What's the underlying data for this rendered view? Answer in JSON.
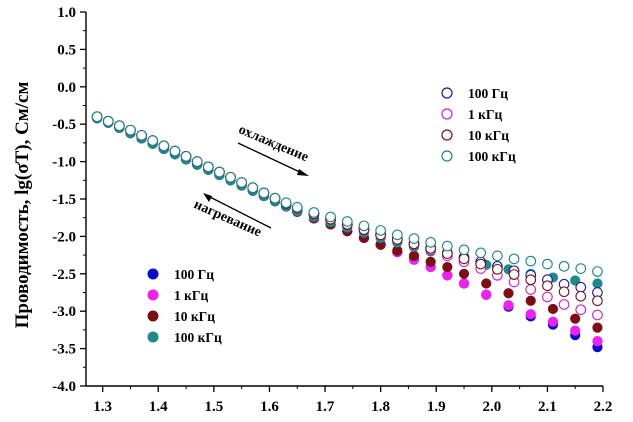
{
  "chart_data": {
    "type": "scatter",
    "ylabel": "Проводимость, lg(σT), См/см",
    "xlabel": "",
    "xlim": [
      1.27,
      2.2
    ],
    "ylim": [
      -4.0,
      1.0
    ],
    "x_ticks": [
      "1.3",
      "1.4",
      "1.5",
      "1.6",
      "1.7",
      "1.8",
      "1.9",
      "2.0",
      "2.1",
      "2.2"
    ],
    "y_ticks": [
      "1.0",
      "0.5",
      "0.0",
      "-0.5",
      "-1.0",
      "-1.5",
      "-2.0",
      "-2.5",
      "-3.0",
      "-3.5",
      "-4.0"
    ],
    "grid": false,
    "annotations": {
      "cooling": "охлаждение",
      "heating": "нагревание"
    },
    "legend_cooling": {
      "placement": "top-right",
      "entries": [
        {
          "label": "100 Гц",
          "color": "#1a1aa6"
        },
        {
          "label": "1 кГц",
          "color": "#d020d0"
        },
        {
          "label": "10 кГц",
          "color": "#7a1020"
        },
        {
          "label": "100 кГц",
          "color": "#1a8585"
        }
      ]
    },
    "legend_heating": {
      "placement": "bottom-left",
      "entries": [
        {
          "label": "100 Гц",
          "color": "#0a0ad0"
        },
        {
          "label": "1 кГц",
          "color": "#f020f0"
        },
        {
          "label": "10 кГц",
          "color": "#7d0f14"
        },
        {
          "label": "100 кГц",
          "color": "#1f8a8a"
        }
      ]
    },
    "series": [
      {
        "mode": "cooling",
        "color": "#1a1aa6",
        "x": [
          1.29,
          1.31,
          1.33,
          1.35,
          1.37,
          1.39,
          1.41,
          1.43,
          1.45,
          1.47,
          1.49,
          1.51,
          1.53,
          1.55,
          1.57,
          1.59,
          1.61,
          1.63,
          1.65,
          1.68,
          1.71,
          1.74,
          1.77,
          1.8,
          1.83,
          1.86,
          1.89,
          1.92,
          1.95,
          1.98,
          2.01,
          2.04,
          2.07,
          2.1,
          2.13,
          2.16,
          2.19
        ],
        "y": [
          -0.4,
          -0.46,
          -0.52,
          -0.58,
          -0.65,
          -0.72,
          -0.79,
          -0.86,
          -0.93,
          -1.0,
          -1.07,
          -1.14,
          -1.21,
          -1.28,
          -1.35,
          -1.42,
          -1.49,
          -1.56,
          -1.62,
          -1.7,
          -1.77,
          -1.84,
          -1.9,
          -1.97,
          -2.03,
          -2.09,
          -2.15,
          -2.22,
          -2.28,
          -2.34,
          -2.4,
          -2.46,
          -2.52,
          -2.58,
          -2.64,
          -2.68,
          -2.75
        ]
      },
      {
        "mode": "cooling",
        "color": "#d020d0",
        "x": [
          1.29,
          1.31,
          1.33,
          1.35,
          1.37,
          1.39,
          1.41,
          1.43,
          1.45,
          1.47,
          1.49,
          1.51,
          1.53,
          1.55,
          1.57,
          1.59,
          1.61,
          1.63,
          1.65,
          1.68,
          1.71,
          1.74,
          1.77,
          1.8,
          1.83,
          1.86,
          1.89,
          1.92,
          1.95,
          1.98,
          2.01,
          2.04,
          2.07,
          2.1,
          2.13,
          2.16,
          2.19
        ],
        "y": [
          -0.4,
          -0.46,
          -0.52,
          -0.58,
          -0.65,
          -0.72,
          -0.79,
          -0.86,
          -0.93,
          -1.0,
          -1.07,
          -1.14,
          -1.21,
          -1.28,
          -1.35,
          -1.42,
          -1.49,
          -1.56,
          -1.62,
          -1.7,
          -1.77,
          -1.84,
          -1.91,
          -1.98,
          -2.04,
          -2.11,
          -2.18,
          -2.26,
          -2.34,
          -2.43,
          -2.52,
          -2.61,
          -2.71,
          -2.81,
          -2.91,
          -2.98,
          -3.05
        ]
      },
      {
        "mode": "cooling",
        "color": "#7a1020",
        "x": [
          1.29,
          1.31,
          1.33,
          1.35,
          1.37,
          1.39,
          1.41,
          1.43,
          1.45,
          1.47,
          1.49,
          1.51,
          1.53,
          1.55,
          1.57,
          1.59,
          1.61,
          1.63,
          1.65,
          1.68,
          1.71,
          1.74,
          1.77,
          1.8,
          1.83,
          1.86,
          1.89,
          1.92,
          1.95,
          1.98,
          2.01,
          2.04,
          2.07,
          2.1,
          2.13,
          2.16,
          2.19
        ],
        "y": [
          -0.4,
          -0.46,
          -0.52,
          -0.58,
          -0.65,
          -0.72,
          -0.79,
          -0.86,
          -0.93,
          -1.0,
          -1.07,
          -1.14,
          -1.21,
          -1.28,
          -1.35,
          -1.42,
          -1.49,
          -1.56,
          -1.62,
          -1.7,
          -1.77,
          -1.84,
          -1.91,
          -1.98,
          -2.04,
          -2.1,
          -2.16,
          -2.23,
          -2.3,
          -2.37,
          -2.44,
          -2.51,
          -2.58,
          -2.66,
          -2.74,
          -2.8,
          -2.86
        ]
      },
      {
        "mode": "cooling",
        "color": "#1a8585",
        "x": [
          1.29,
          1.31,
          1.33,
          1.35,
          1.37,
          1.39,
          1.41,
          1.43,
          1.45,
          1.47,
          1.49,
          1.51,
          1.53,
          1.55,
          1.57,
          1.59,
          1.61,
          1.63,
          1.65,
          1.68,
          1.71,
          1.74,
          1.77,
          1.8,
          1.83,
          1.86,
          1.89,
          1.92,
          1.95,
          1.98,
          2.01,
          2.04,
          2.07,
          2.1,
          2.13,
          2.16,
          2.19
        ],
        "y": [
          -0.4,
          -0.46,
          -0.52,
          -0.58,
          -0.65,
          -0.72,
          -0.79,
          -0.86,
          -0.93,
          -1.0,
          -1.07,
          -1.14,
          -1.21,
          -1.28,
          -1.35,
          -1.42,
          -1.49,
          -1.55,
          -1.61,
          -1.68,
          -1.74,
          -1.8,
          -1.86,
          -1.92,
          -1.98,
          -2.03,
          -2.08,
          -2.13,
          -2.18,
          -2.22,
          -2.26,
          -2.3,
          -2.33,
          -2.37,
          -2.4,
          -2.43,
          -2.47
        ]
      },
      {
        "mode": "heating",
        "color": "#0a0ad0",
        "x": [
          1.29,
          1.31,
          1.33,
          1.35,
          1.37,
          1.39,
          1.41,
          1.43,
          1.45,
          1.47,
          1.49,
          1.51,
          1.53,
          1.55,
          1.57,
          1.59,
          1.61,
          1.63,
          1.65,
          1.68,
          1.71,
          1.74,
          1.77,
          1.8,
          1.83,
          1.86,
          1.89,
          1.92,
          1.95,
          1.99,
          2.03,
          2.07,
          2.11,
          2.15,
          2.19
        ],
        "y": [
          -0.42,
          -0.48,
          -0.55,
          -0.62,
          -0.69,
          -0.76,
          -0.83,
          -0.9,
          -0.97,
          -1.04,
          -1.11,
          -1.18,
          -1.25,
          -1.32,
          -1.39,
          -1.46,
          -1.53,
          -1.6,
          -1.67,
          -1.76,
          -1.84,
          -1.93,
          -2.02,
          -2.11,
          -2.21,
          -2.31,
          -2.41,
          -2.52,
          -2.63,
          -2.78,
          -2.94,
          -3.07,
          -3.18,
          -3.32,
          -3.48
        ]
      },
      {
        "mode": "heating",
        "color": "#f020f0",
        "x": [
          1.29,
          1.31,
          1.33,
          1.35,
          1.37,
          1.39,
          1.41,
          1.43,
          1.45,
          1.47,
          1.49,
          1.51,
          1.53,
          1.55,
          1.57,
          1.59,
          1.61,
          1.63,
          1.65,
          1.68,
          1.71,
          1.74,
          1.77,
          1.8,
          1.83,
          1.86,
          1.89,
          1.92,
          1.95,
          1.99,
          2.03,
          2.07,
          2.11,
          2.15,
          2.19
        ],
        "y": [
          -0.42,
          -0.48,
          -0.55,
          -0.62,
          -0.69,
          -0.76,
          -0.83,
          -0.9,
          -0.97,
          -1.04,
          -1.11,
          -1.18,
          -1.25,
          -1.32,
          -1.39,
          -1.46,
          -1.53,
          -1.6,
          -1.67,
          -1.76,
          -1.84,
          -1.93,
          -2.02,
          -2.11,
          -2.21,
          -2.31,
          -2.41,
          -2.52,
          -2.63,
          -2.78,
          -2.92,
          -3.04,
          -3.14,
          -3.26,
          -3.4
        ]
      },
      {
        "mode": "heating",
        "color": "#7d0f14",
        "x": [
          1.29,
          1.31,
          1.33,
          1.35,
          1.37,
          1.39,
          1.41,
          1.43,
          1.45,
          1.47,
          1.49,
          1.51,
          1.53,
          1.55,
          1.57,
          1.59,
          1.61,
          1.63,
          1.65,
          1.68,
          1.71,
          1.74,
          1.77,
          1.8,
          1.83,
          1.86,
          1.89,
          1.92,
          1.95,
          1.99,
          2.03,
          2.07,
          2.11,
          2.15,
          2.19
        ],
        "y": [
          -0.42,
          -0.48,
          -0.55,
          -0.62,
          -0.69,
          -0.76,
          -0.83,
          -0.9,
          -0.97,
          -1.04,
          -1.11,
          -1.18,
          -1.25,
          -1.32,
          -1.39,
          -1.46,
          -1.53,
          -1.6,
          -1.67,
          -1.76,
          -1.84,
          -1.93,
          -2.02,
          -2.11,
          -2.19,
          -2.26,
          -2.34,
          -2.41,
          -2.5,
          -2.63,
          -2.76,
          -2.86,
          -2.97,
          -3.1,
          -3.22
        ]
      },
      {
        "mode": "heating",
        "color": "#1f8a8a",
        "x": [
          1.29,
          1.31,
          1.33,
          1.35,
          1.37,
          1.39,
          1.41,
          1.43,
          1.45,
          1.47,
          1.49,
          1.51,
          1.53,
          1.55,
          1.57,
          1.59,
          1.61,
          1.63,
          1.65,
          1.68,
          1.71,
          1.74,
          1.77,
          1.8,
          1.83,
          1.86,
          1.89,
          1.92,
          1.95,
          1.99,
          2.03,
          2.07,
          2.11,
          2.15,
          2.19
        ],
        "y": [
          -0.42,
          -0.48,
          -0.55,
          -0.62,
          -0.69,
          -0.76,
          -0.83,
          -0.9,
          -0.97,
          -1.04,
          -1.11,
          -1.18,
          -1.25,
          -1.32,
          -1.39,
          -1.46,
          -1.53,
          -1.6,
          -1.66,
          -1.74,
          -1.81,
          -1.88,
          -1.95,
          -2.02,
          -2.08,
          -2.14,
          -2.2,
          -2.26,
          -2.31,
          -2.38,
          -2.44,
          -2.5,
          -2.55,
          -2.59,
          -2.63
        ]
      }
    ]
  }
}
